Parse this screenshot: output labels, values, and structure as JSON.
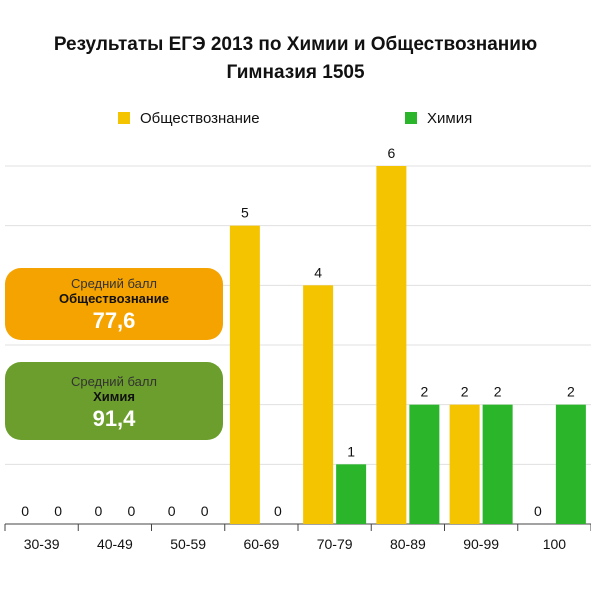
{
  "title_line1": "Результаты ЕГЭ 2013 по Химии и Обществознанию",
  "title_line2": "Гимназия 1505",
  "legend": [
    {
      "name": "Обществознание",
      "color": "#f5c400"
    },
    {
      "name": "Химия",
      "color": "#2bb52b"
    }
  ],
  "boxes": {
    "social": {
      "line1": "Средний балл",
      "line2": "Обществознание",
      "value": "77,6",
      "color": "#f5a300"
    },
    "chem": {
      "line1": "Средний балл",
      "line2": "Химия",
      "value": "91,4",
      "color": "#6b9e2c"
    }
  },
  "chart_data": {
    "type": "bar",
    "categories": [
      "30-39",
      "40-49",
      "50-59",
      "60-69",
      "70-79",
      "80-89",
      "90-99",
      "100"
    ],
    "series": [
      {
        "name": "Обществознание",
        "values": [
          0,
          0,
          0,
          5,
          4,
          6,
          2,
          0
        ],
        "color": "#f5c400"
      },
      {
        "name": "Химия",
        "values": [
          0,
          0,
          0,
          0,
          1,
          2,
          2,
          2
        ],
        "color": "#2bb52b"
      }
    ],
    "ylim": [
      0,
      6
    ],
    "grid": true
  }
}
